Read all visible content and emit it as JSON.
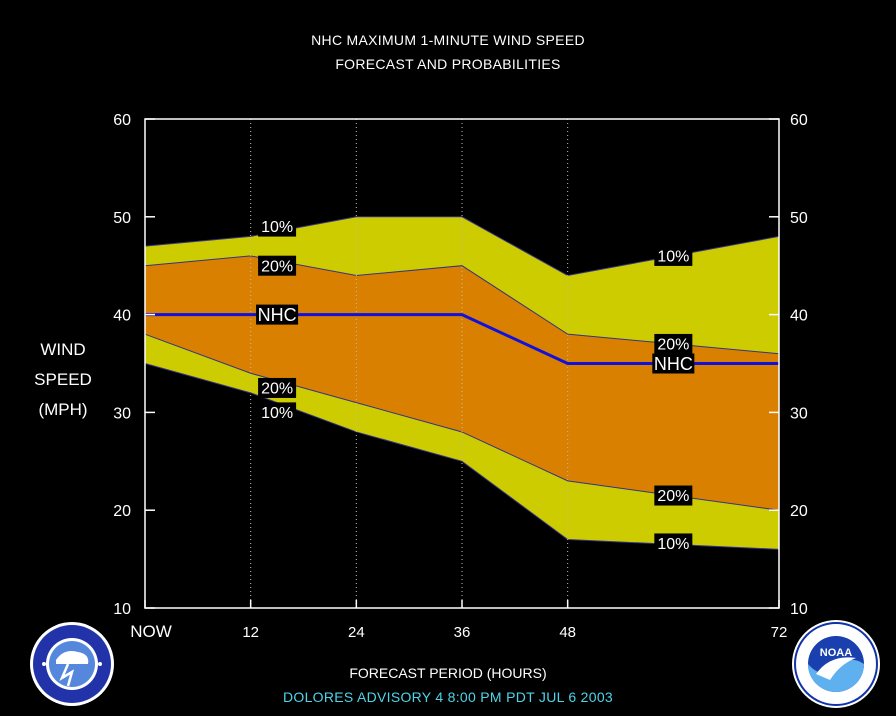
{
  "title_line1": "NHC MAXIMUM 1-MINUTE WIND SPEED",
  "title_line2": "FORECAST AND PROBABILITIES",
  "ylabel_lines": [
    "WIND",
    "SPEED",
    "(MPH)"
  ],
  "xlabel": "FORECAST PERIOD (HOURS)",
  "advisory_text": "DOLORES    ADVISORY  4 8:00  PM  PDT  JUL  6  2003",
  "logos": {
    "left": "NATIONAL WEATHER SERVICE",
    "right": "NOAA"
  },
  "chart_data": {
    "type": "area",
    "x": [
      0,
      12,
      24,
      36,
      48,
      72
    ],
    "x_tick_labels": [
      "NOW",
      "12",
      "24",
      "36",
      "48",
      "72"
    ],
    "xlim": [
      0,
      72
    ],
    "ylim": [
      10,
      60
    ],
    "y_ticks": [
      10,
      20,
      30,
      40,
      50,
      60
    ],
    "grid": "vertical dotted at 12, 24, 36, 48",
    "series": [
      {
        "name": "10%",
        "upper": [
          47,
          48,
          50,
          50,
          44,
          48
        ],
        "lower": [
          35,
          32,
          28,
          25,
          17,
          16
        ],
        "color": "#cccc00"
      },
      {
        "name": "20%",
        "upper": [
          45,
          46,
          44,
          45,
          38,
          36
        ],
        "lower": [
          38,
          34,
          31,
          28,
          23,
          20
        ],
        "color": "#d98000"
      },
      {
        "name": "NHC",
        "values": [
          40,
          40,
          40,
          40,
          35,
          35
        ],
        "color": "#1111dd"
      }
    ],
    "labels": [
      {
        "text": "10%",
        "x": 15,
        "y": 49
      },
      {
        "text": "20%",
        "x": 15,
        "y": 45
      },
      {
        "text": "NHC",
        "x": 15,
        "y": 40
      },
      {
        "text": "20%",
        "x": 15,
        "y": 32.5
      },
      {
        "text": "10%",
        "x": 15,
        "y": 30
      },
      {
        "text": "10%",
        "x": 60,
        "y": 46
      },
      {
        "text": "20%",
        "x": 60,
        "y": 37
      },
      {
        "text": "NHC",
        "x": 60,
        "y": 35
      },
      {
        "text": "20%",
        "x": 60,
        "y": 21.5
      },
      {
        "text": "10%",
        "x": 60,
        "y": 16.6
      }
    ]
  }
}
